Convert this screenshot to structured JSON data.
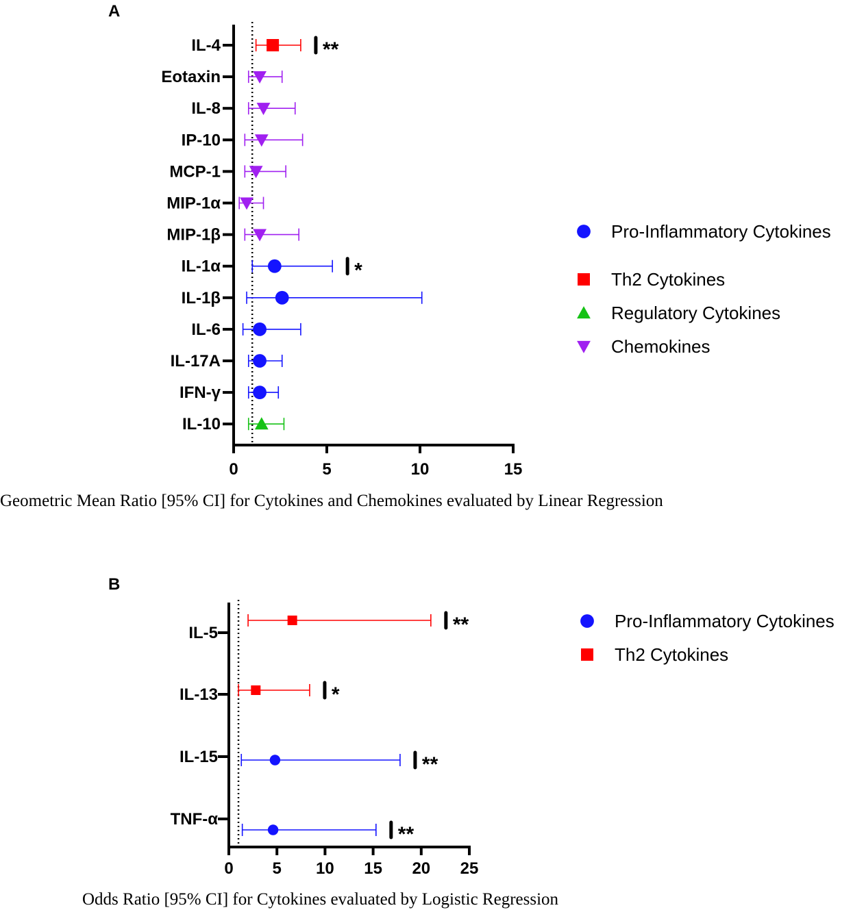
{
  "panels": [
    {
      "panel_label": "A",
      "caption": "Geometric Mean Ratio [95% CI] for Cytokines and Chemokines evaluated by Linear Regression",
      "legend": [
        {
          "label": "Pro-Inflammatory Cytokines",
          "marker": "circle",
          "color": "#1414ff"
        },
        {
          "label": "Th2 Cytokines",
          "marker": "square",
          "color": "#ff0000"
        },
        {
          "label": "Regulatory Cytokines",
          "marker": "triangle-up",
          "color": "#16c216"
        },
        {
          "label": "Chemokines",
          "marker": "triangle-down",
          "color": "#a020f0"
        }
      ]
    },
    {
      "panel_label": "B",
      "caption": "Odds Ratio [95% CI] for Cytokines evaluated by Logistic Regression",
      "legend": [
        {
          "label": "Pro-Inflammatory Cytokines",
          "marker": "circle",
          "color": "#1414ff"
        },
        {
          "label": "Th2 Cytokines",
          "marker": "square",
          "color": "#ff0000"
        }
      ]
    }
  ],
  "chart_data": [
    {
      "type": "forest",
      "panel": "A",
      "title": "",
      "xlabel": "Geometric Mean Ratio [95% CI] for Cytokines and Chemokines evaluated by Linear Regression",
      "ylabel": "",
      "xlim": [
        0,
        15
      ],
      "xticks": [
        0,
        5,
        10,
        15
      ],
      "reference_line": 1,
      "rows": [
        {
          "label": "IL-4",
          "group": "Th2 Cytokines",
          "estimate": 2.1,
          "lower": 1.2,
          "upper": 3.6,
          "significance": "**"
        },
        {
          "label": "Eotaxin",
          "group": "Chemokines",
          "estimate": 1.4,
          "lower": 0.8,
          "upper": 2.6,
          "significance": ""
        },
        {
          "label": "IL-8",
          "group": "Chemokines",
          "estimate": 1.6,
          "lower": 0.8,
          "upper": 3.3,
          "significance": ""
        },
        {
          "label": "IP-10",
          "group": "Chemokines",
          "estimate": 1.5,
          "lower": 0.6,
          "upper": 3.7,
          "significance": ""
        },
        {
          "label": "MCP-1",
          "group": "Chemokines",
          "estimate": 1.2,
          "lower": 0.6,
          "upper": 2.8,
          "significance": ""
        },
        {
          "label": "MIP-1α",
          "group": "Chemokines",
          "estimate": 0.7,
          "lower": 0.3,
          "upper": 1.6,
          "significance": ""
        },
        {
          "label": "MIP-1β",
          "group": "Chemokines",
          "estimate": 1.4,
          "lower": 0.6,
          "upper": 3.5,
          "significance": ""
        },
        {
          "label": "IL-1α",
          "group": "Pro-Inflammatory Cytokines",
          "estimate": 2.2,
          "lower": 1.0,
          "upper": 5.3,
          "significance": "*"
        },
        {
          "label": "IL-1β",
          "group": "Pro-Inflammatory Cytokines",
          "estimate": 2.6,
          "lower": 0.7,
          "upper": 10.1,
          "significance": ""
        },
        {
          "label": "IL-6",
          "group": "Pro-Inflammatory Cytokines",
          "estimate": 1.4,
          "lower": 0.5,
          "upper": 3.6,
          "significance": ""
        },
        {
          "label": "IL-17A",
          "group": "Pro-Inflammatory Cytokines",
          "estimate": 1.4,
          "lower": 0.8,
          "upper": 2.6,
          "significance": ""
        },
        {
          "label": "IFN-γ",
          "group": "Pro-Inflammatory Cytokines",
          "estimate": 1.4,
          "lower": 0.8,
          "upper": 2.4,
          "significance": ""
        },
        {
          "label": "IL-10",
          "group": "Regulatory Cytokines",
          "estimate": 1.5,
          "lower": 0.8,
          "upper": 2.7,
          "significance": ""
        }
      ]
    },
    {
      "type": "forest",
      "panel": "B",
      "title": "",
      "xlabel": "Odds Ratio [95% CI] for Cytokines evaluated by Logistic Regression",
      "ylabel": "",
      "xlim": [
        0,
        25
      ],
      "xticks": [
        0,
        5,
        10,
        15,
        20,
        25
      ],
      "reference_line": 1,
      "rows": [
        {
          "label": "IL-5",
          "group": "Th2 Cytokines",
          "estimate": 6.6,
          "lower": 2.0,
          "upper": 21.0,
          "significance": "**"
        },
        {
          "label": "IL-13",
          "group": "Th2 Cytokines",
          "estimate": 2.8,
          "lower": 1.0,
          "upper": 8.4,
          "significance": "*"
        },
        {
          "label": "IL-15",
          "group": "Pro-Inflammatory Cytokines",
          "estimate": 4.8,
          "lower": 1.3,
          "upper": 17.8,
          "significance": "**"
        },
        {
          "label": "TNF-α",
          "group": "Pro-Inflammatory Cytokines",
          "estimate": 4.6,
          "lower": 1.4,
          "upper": 15.3,
          "significance": "**"
        }
      ]
    }
  ]
}
